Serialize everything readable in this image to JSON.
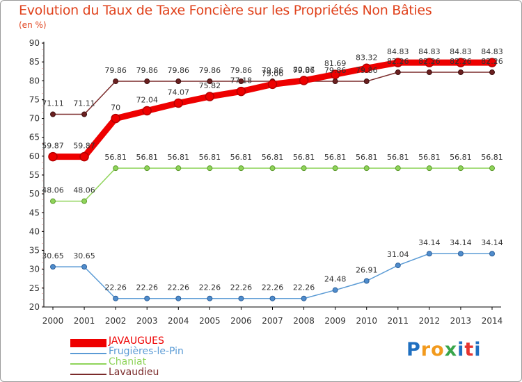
{
  "chart_data": {
    "type": "line",
    "title": "Evolution du Taux de Taxe Foncière sur les Propriétés Non Bâties",
    "ylabel": "(en %)",
    "xlabel": "",
    "ylim": [
      20,
      90
    ],
    "yticks": [
      "20",
      "25",
      "30",
      "35",
      "40",
      "45",
      "50",
      "55",
      "60",
      "65",
      "70",
      "75",
      "80",
      "85",
      "90"
    ],
    "categories": [
      "2000",
      "2001",
      "2002",
      "2003",
      "2004",
      "2005",
      "2006",
      "2007",
      "2008",
      "2009",
      "2010",
      "2011",
      "2012",
      "2013",
      "2014"
    ],
    "grid": false,
    "legend_position": "bottom-left",
    "series": [
      {
        "name": "JAVAUGUES",
        "color": "#ee0000",
        "values": [
          59.87,
          59.87,
          70,
          72.04,
          74.07,
          75.82,
          77.18,
          79.06,
          80.07,
          81.69,
          83.32,
          84.83,
          84.83,
          84.83,
          84.83
        ],
        "labels": [
          "59.87",
          "59.87",
          "70",
          "72.04",
          "74.07",
          "75.82",
          "77.18",
          "79.06",
          "80.07",
          "81.69",
          "83.32",
          "84.83",
          "84.83",
          "84.83",
          "84.83"
        ]
      },
      {
        "name": "Frugières-le-Pin",
        "color": "#5b9bd5",
        "values": [
          30.65,
          30.65,
          22.26,
          22.26,
          22.26,
          22.26,
          22.26,
          22.26,
          22.26,
          24.48,
          26.91,
          31.04,
          34.14,
          34.14,
          34.14
        ],
        "labels": [
          "30.65",
          "30.65",
          "22.26",
          "22.26",
          "22.26",
          "22.26",
          "22.26",
          "22.26",
          "22.26",
          "24.48",
          "26.91",
          "31.04",
          "34.14",
          "34.14",
          "34.14"
        ]
      },
      {
        "name": "Chaniat",
        "color": "#8fd45a",
        "values": [
          48.06,
          48.06,
          56.81,
          56.81,
          56.81,
          56.81,
          56.81,
          56.81,
          56.81,
          56.81,
          56.81,
          56.81,
          56.81,
          56.81,
          56.81
        ],
        "labels": [
          "48.06",
          "48.06",
          "56.81",
          "56.81",
          "56.81",
          "56.81",
          "56.81",
          "56.81",
          "56.81",
          "56.81",
          "56.81",
          "56.81",
          "56.81",
          "56.81",
          "56.81"
        ]
      },
      {
        "name": "Lavaudieu",
        "color": "#7a2a2a",
        "values": [
          71.11,
          71.11,
          79.86,
          79.86,
          79.86,
          79.86,
          79.86,
          79.86,
          79.86,
          79.86,
          79.86,
          82.26,
          82.26,
          82.26,
          82.26
        ],
        "labels": [
          "71.11",
          "71.11",
          "79.86",
          "79.86",
          "79.86",
          "79.86",
          "79.86",
          "79.86",
          "79.86",
          "79.86",
          "79.86",
          "82.26",
          "82.26",
          "82.26",
          "82.26"
        ]
      }
    ]
  },
  "logo": {
    "letters": [
      "P",
      "r",
      "o",
      "x",
      "i",
      "t",
      "i"
    ],
    "colors": [
      "#1f6fc0",
      "#f29a1d",
      "#f29a1d",
      "#38a54a",
      "#1f6fc0",
      "#e6342f",
      "#1f6fc0"
    ]
  },
  "colors": {
    "title": "#e0421c",
    "axis": "#000000",
    "frame": "#9a9a9a"
  }
}
